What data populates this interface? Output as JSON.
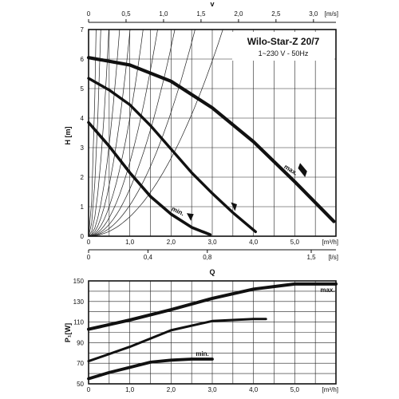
{
  "title": "Wilo-Star-Z 20/7",
  "subtitle": "1~230 V - 50Hz",
  "chart_data": [
    {
      "type": "line",
      "name": "head",
      "xlabel": "Q",
      "ylabel": "H [m]",
      "x_unit": "[m³/h]",
      "xlim": [
        0,
        6.0
      ],
      "ylim": [
        0,
        7
      ],
      "x_ticks": [
        "0",
        "1,0",
        "2,0",
        "3,0",
        "4,0",
        "5,0"
      ],
      "y_ticks": [
        "0",
        "1",
        "2",
        "3",
        "4",
        "5",
        "6",
        "7"
      ],
      "top_axis": {
        "label": "v",
        "unit": "[m/s]",
        "ticks": [
          "0",
          "0,5",
          "1,0",
          "1,5",
          "2,0",
          "2,5",
          "3,0"
        ],
        "values": [
          0,
          0.5,
          1.0,
          1.5,
          2.0,
          2.5,
          3.0
        ]
      },
      "bottom_axis_2": {
        "unit": "[l/s]",
        "ticks": [
          "0",
          "0,4",
          "0,8",
          "1,5"
        ],
        "values": [
          0,
          0.4,
          0.8,
          1.5
        ]
      },
      "system_curve_k": [
        210,
        80,
        29,
        12.4,
        6.9,
        4.0,
        2.5,
        1.6,
        1.05,
        0.66
      ],
      "series": [
        {
          "name": "max.",
          "x": [
            0,
            1.0,
            2.0,
            3.0,
            4.0,
            5.0,
            5.95
          ],
          "y": [
            6.05,
            5.8,
            5.25,
            4.35,
            3.2,
            1.85,
            0.5
          ]
        },
        {
          "name": "",
          "x": [
            0,
            0.5,
            1.0,
            1.5,
            2.0,
            2.5,
            3.0,
            3.5,
            4.05
          ],
          "y": [
            5.35,
            4.95,
            4.45,
            3.75,
            2.95,
            2.15,
            1.45,
            0.8,
            0.15
          ]
        },
        {
          "name": "min.",
          "x": [
            0,
            0.5,
            1.0,
            1.5,
            2.0,
            2.5,
            2.95
          ],
          "y": [
            3.85,
            3.05,
            2.15,
            1.35,
            0.75,
            0.3,
            0.05
          ]
        }
      ]
    },
    {
      "type": "line",
      "name": "power",
      "xlabel": "",
      "ylabel": "P₁[W]",
      "x_unit": "[m³/h]",
      "xlim": [
        0,
        6.0
      ],
      "ylim": [
        50,
        150
      ],
      "x_ticks": [
        "0",
        "1,0",
        "2,0",
        "3,0",
        "4,0",
        "5,0"
      ],
      "y_ticks": [
        "50",
        "70",
        "90",
        "110",
        "130",
        "150"
      ],
      "series": [
        {
          "name": "max.",
          "x": [
            0,
            1.0,
            2.0,
            3.0,
            4.0,
            5.0,
            6.0
          ],
          "y": [
            103,
            112,
            122,
            133,
            142,
            147,
            147
          ]
        },
        {
          "name": "",
          "x": [
            0,
            1.0,
            2.0,
            3.0,
            4.0,
            4.3
          ],
          "y": [
            72,
            86,
            102,
            111,
            113,
            113
          ]
        },
        {
          "name": "min.",
          "x": [
            0,
            0.5,
            1.0,
            1.5,
            2.0,
            2.5,
            3.0
          ],
          "y": [
            55,
            61,
            66,
            71,
            73,
            74,
            74
          ]
        }
      ]
    }
  ]
}
